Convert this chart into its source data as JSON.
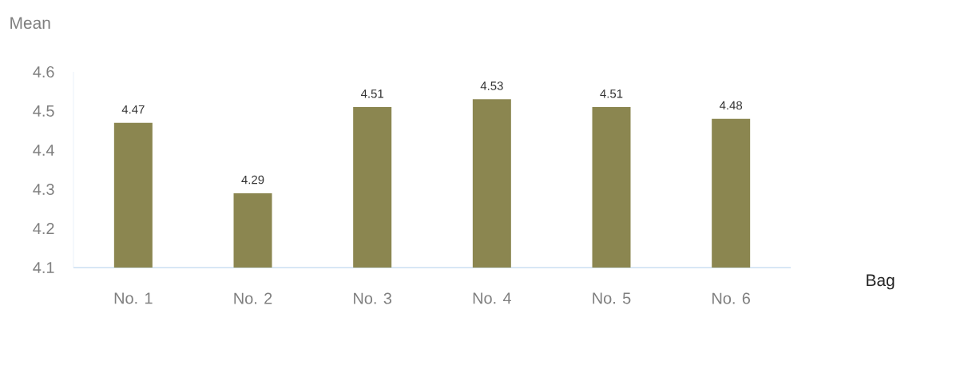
{
  "chart_data": {
    "type": "bar",
    "ylabel": "Mean",
    "xlabel": "Bag",
    "categories": [
      "No. 1",
      "No. 2",
      "No. 3",
      "No. 4",
      "No. 5",
      "No. 6"
    ],
    "values": [
      4.47,
      4.29,
      4.51,
      4.53,
      4.51,
      4.48
    ],
    "color": "#8b8650",
    "ylim": [
      4.1,
      4.6
    ],
    "yticks": [
      4.1,
      4.2,
      4.3,
      4.4,
      4.5,
      4.6
    ],
    "data_labels": true,
    "grid": false
  }
}
